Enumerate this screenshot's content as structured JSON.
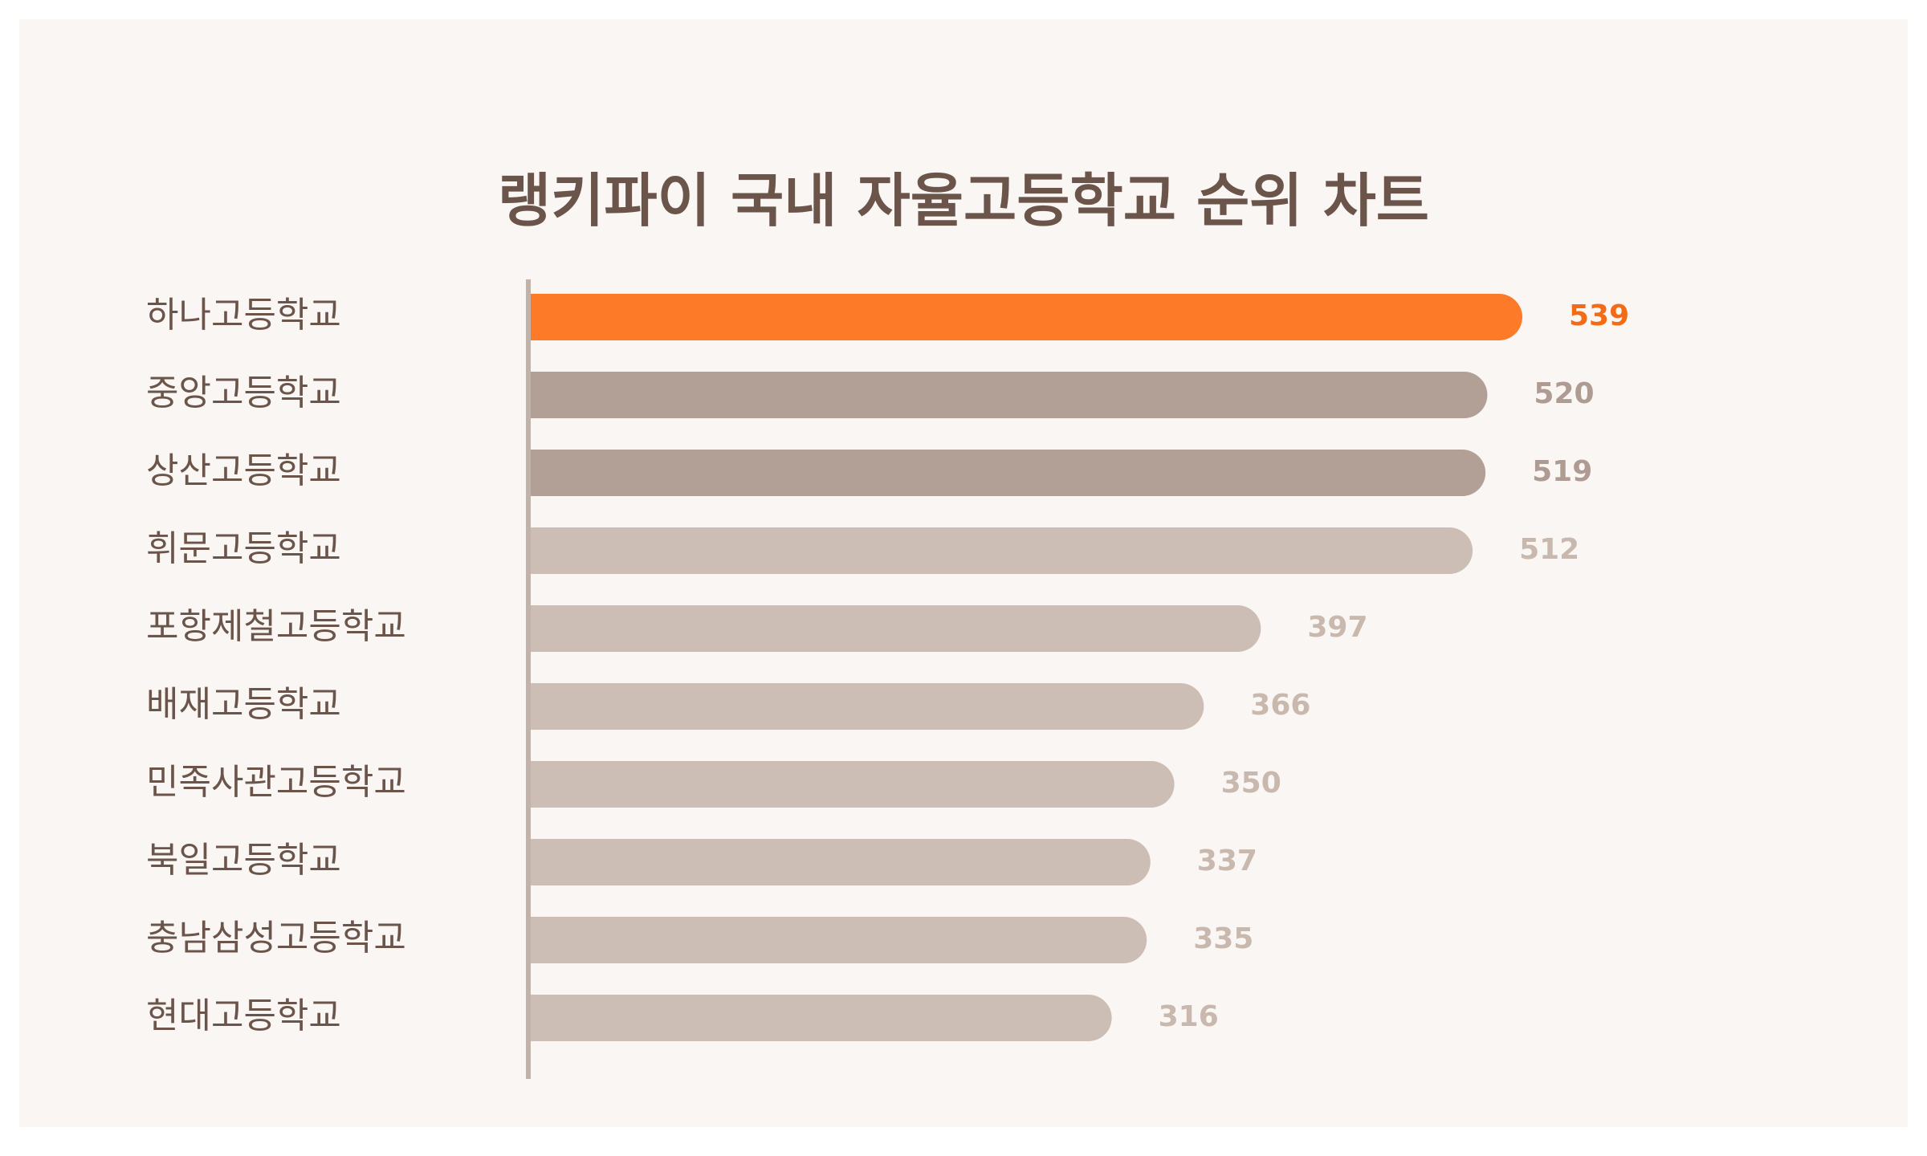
{
  "chart_data": {
    "type": "bar",
    "orientation": "horizontal",
    "title": "랭키파이 국내 자율고등학교 순위 차트",
    "categories": [
      "하나고등학교",
      "중앙고등학교",
      "상산고등학교",
      "휘문고등학교",
      "포항제철고등학교",
      "배재고등학교",
      "민족사관고등학교",
      "북일고등학교",
      "충남삼성고등학교",
      "현대고등학교"
    ],
    "values": [
      539,
      520,
      519,
      512,
      397,
      366,
      350,
      337,
      335,
      316
    ],
    "xlim": [
      0,
      539
    ],
    "grid": false,
    "legend": "none",
    "colors": {
      "highlight_bar": "#fd7a28",
      "highlight_label": "#f36b14",
      "dark_bar": "#b2a097",
      "dark_label": "#ae9b91",
      "light_bar": "#cdbeb5",
      "light_label": "#c8b8ad",
      "axis": "#c2b3aa",
      "text": "#6b554b",
      "background": "#faf6f4"
    },
    "bar_tiers": [
      "highlight",
      "dark",
      "dark",
      "light",
      "light",
      "light",
      "light",
      "light",
      "light",
      "light"
    ]
  }
}
